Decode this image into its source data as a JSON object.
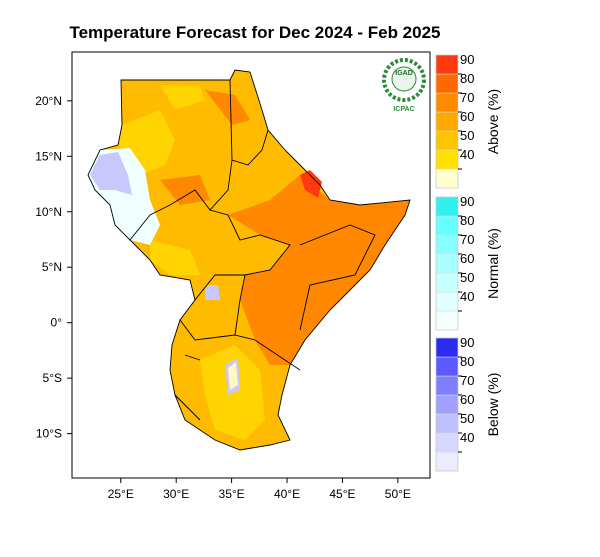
{
  "map": {
    "title": "Temperature Forecast for Dec 2024 - Feb 2025",
    "xlim": [
      20.6,
      52.9
    ],
    "ylim": [
      -14,
      24.4
    ],
    "xticks": [
      {
        "value": 25,
        "label": "25°E"
      },
      {
        "value": 30,
        "label": "30°E"
      },
      {
        "value": 35,
        "label": "35°E"
      },
      {
        "value": 40,
        "label": "40°E"
      },
      {
        "value": 45,
        "label": "45°E"
      },
      {
        "value": 50,
        "label": "50°E"
      }
    ],
    "yticks": [
      {
        "value": 20,
        "label": "20°N"
      },
      {
        "value": 15,
        "label": "15°N"
      },
      {
        "value": 10,
        "label": "10°N"
      },
      {
        "value": 5,
        "label": "5°N"
      },
      {
        "value": 0,
        "label": "0°"
      },
      {
        "value": -5,
        "label": "5°S"
      },
      {
        "value": -10,
        "label": "10°S"
      }
    ],
    "colorbars": [
      {
        "label": "Above (%)",
        "ticks": [
          40,
          50,
          60,
          70,
          80,
          90
        ],
        "colors": [
          "#ffffd0",
          "#ffe000",
          "#ffc400",
          "#ffa800",
          "#ff8c00",
          "#ff6a00",
          "#ff3a10"
        ]
      },
      {
        "label": "Normal (%)",
        "ticks": [
          40,
          50,
          60,
          70,
          80,
          90
        ],
        "colors": [
          "#f4ffff",
          "#e0ffff",
          "#c8ffff",
          "#a8ffff",
          "#88ffff",
          "#66ffff",
          "#33f0f0"
        ]
      },
      {
        "label": "Below (%)",
        "ticks": [
          40,
          50,
          60,
          70,
          80,
          90
        ],
        "colors": [
          "#ececff",
          "#d8d8ff",
          "#c0c0ff",
          "#a0a0ff",
          "#8080ff",
          "#5a5aff",
          "#2c2cf0"
        ]
      }
    ],
    "logo": {
      "name": "IGAD",
      "org": "ICPAC"
    }
  }
}
